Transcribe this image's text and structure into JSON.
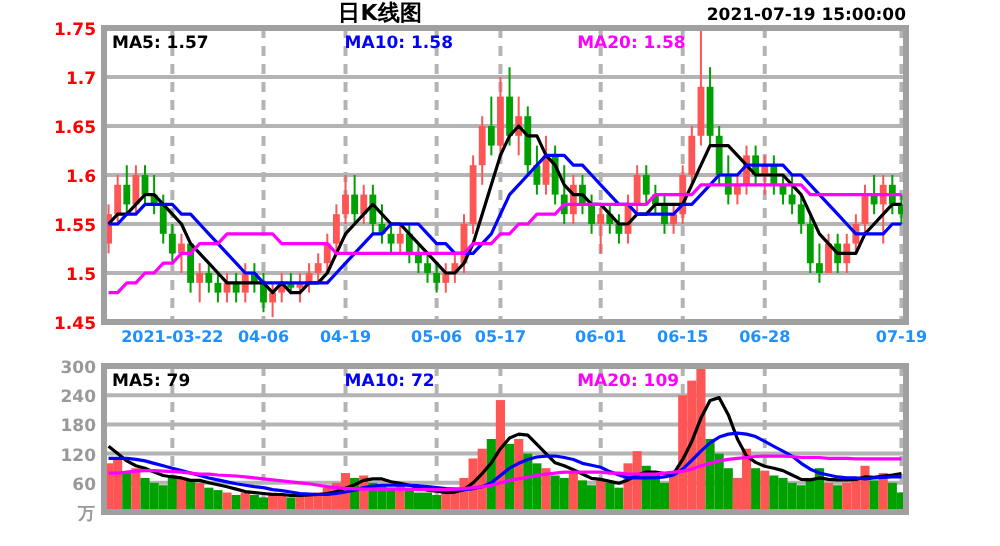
{
  "chart_data": [
    {
      "type": "candlestick",
      "title": "日K线图",
      "subtitle": "2021-07-19 15:00:00",
      "grid": true,
      "legend": "top left",
      "categories": [
        null,
        null,
        null,
        null,
        null,
        null,
        null,
        "2021-03-22",
        null,
        null,
        null,
        null,
        null,
        null,
        null,
        null,
        null,
        "04-06",
        null,
        null,
        null,
        null,
        null,
        null,
        null,
        null,
        "04-19",
        null,
        null,
        null,
        null,
        null,
        null,
        null,
        null,
        null,
        "05-06",
        null,
        null,
        null,
        null,
        null,
        null,
        "05-17",
        null,
        null,
        null,
        null,
        null,
        null,
        null,
        null,
        null,
        null,
        "06-01",
        null,
        null,
        null,
        null,
        null,
        null,
        null,
        null,
        "06-15",
        null,
        null,
        null,
        null,
        null,
        null,
        null,
        null,
        "06-28",
        null,
        null,
        null,
        null,
        null,
        null,
        null,
        null,
        null,
        null,
        null,
        null,
        null,
        null,
        "07-19"
      ],
      "ylim": [
        1.45,
        1.75
      ],
      "yticks": [
        1.45,
        1.5,
        1.55,
        1.6,
        1.65,
        1.7,
        1.75
      ],
      "ohlc": [
        [
          1.53,
          1.57,
          1.52,
          1.56
        ],
        [
          1.56,
          1.6,
          1.55,
          1.59
        ],
        [
          1.59,
          1.61,
          1.56,
          1.57
        ],
        [
          1.57,
          1.61,
          1.56,
          1.6
        ],
        [
          1.6,
          1.61,
          1.57,
          1.58
        ],
        [
          1.58,
          1.6,
          1.56,
          1.57
        ],
        [
          1.57,
          1.58,
          1.53,
          1.54
        ],
        [
          1.54,
          1.55,
          1.51,
          1.52
        ],
        [
          1.52,
          1.54,
          1.5,
          1.53
        ],
        [
          1.53,
          1.53,
          1.48,
          1.49
        ],
        [
          1.49,
          1.51,
          1.47,
          1.5
        ],
        [
          1.5,
          1.51,
          1.48,
          1.49
        ],
        [
          1.49,
          1.5,
          1.47,
          1.48
        ],
        [
          1.48,
          1.5,
          1.47,
          1.49
        ],
        [
          1.49,
          1.5,
          1.47,
          1.48
        ],
        [
          1.48,
          1.51,
          1.47,
          1.5
        ],
        [
          1.5,
          1.51,
          1.48,
          1.49
        ],
        [
          1.49,
          1.5,
          1.46,
          1.47
        ],
        [
          1.47,
          1.49,
          1.455,
          1.48
        ],
        [
          1.48,
          1.5,
          1.47,
          1.49
        ],
        [
          1.49,
          1.5,
          1.48,
          1.485
        ],
        [
          1.485,
          1.5,
          1.47,
          1.49
        ],
        [
          1.49,
          1.51,
          1.48,
          1.5
        ],
        [
          1.5,
          1.52,
          1.49,
          1.51
        ],
        [
          1.51,
          1.54,
          1.5,
          1.53
        ],
        [
          1.53,
          1.57,
          1.52,
          1.56
        ],
        [
          1.56,
          1.6,
          1.55,
          1.58
        ],
        [
          1.58,
          1.6,
          1.55,
          1.56
        ],
        [
          1.56,
          1.59,
          1.55,
          1.58
        ],
        [
          1.58,
          1.59,
          1.54,
          1.55
        ],
        [
          1.55,
          1.57,
          1.53,
          1.54
        ],
        [
          1.54,
          1.55,
          1.52,
          1.53
        ],
        [
          1.53,
          1.55,
          1.52,
          1.54
        ],
        [
          1.54,
          1.55,
          1.51,
          1.52
        ],
        [
          1.52,
          1.53,
          1.5,
          1.51
        ],
        [
          1.51,
          1.52,
          1.49,
          1.5
        ],
        [
          1.5,
          1.51,
          1.48,
          1.49
        ],
        [
          1.49,
          1.51,
          1.48,
          1.5
        ],
        [
          1.5,
          1.52,
          1.49,
          1.51
        ],
        [
          1.51,
          1.56,
          1.5,
          1.55
        ],
        [
          1.55,
          1.62,
          1.54,
          1.61
        ],
        [
          1.61,
          1.66,
          1.59,
          1.65
        ],
        [
          1.65,
          1.68,
          1.62,
          1.63
        ],
        [
          1.63,
          1.7,
          1.62,
          1.68
        ],
        [
          1.68,
          1.71,
          1.63,
          1.64
        ],
        [
          1.64,
          1.68,
          1.62,
          1.66
        ],
        [
          1.66,
          1.67,
          1.6,
          1.61
        ],
        [
          1.61,
          1.63,
          1.58,
          1.59
        ],
        [
          1.59,
          1.64,
          1.58,
          1.62
        ],
        [
          1.62,
          1.63,
          1.57,
          1.58
        ],
        [
          1.58,
          1.61,
          1.55,
          1.56
        ],
        [
          1.56,
          1.6,
          1.55,
          1.59
        ],
        [
          1.59,
          1.6,
          1.56,
          1.57
        ],
        [
          1.57,
          1.58,
          1.54,
          1.55
        ],
        [
          1.55,
          1.57,
          1.52,
          1.56
        ],
        [
          1.56,
          1.57,
          1.54,
          1.55
        ],
        [
          1.55,
          1.56,
          1.53,
          1.54
        ],
        [
          1.54,
          1.58,
          1.53,
          1.57
        ],
        [
          1.57,
          1.61,
          1.56,
          1.6
        ],
        [
          1.6,
          1.61,
          1.57,
          1.58
        ],
        [
          1.58,
          1.59,
          1.56,
          1.57
        ],
        [
          1.57,
          1.58,
          1.54,
          1.55
        ],
        [
          1.55,
          1.57,
          1.54,
          1.56
        ],
        [
          1.56,
          1.61,
          1.55,
          1.6
        ],
        [
          1.6,
          1.65,
          1.59,
          1.64
        ],
        [
          1.64,
          1.75,
          1.63,
          1.69
        ],
        [
          1.69,
          1.71,
          1.63,
          1.64
        ],
        [
          1.64,
          1.65,
          1.59,
          1.6
        ],
        [
          1.6,
          1.62,
          1.57,
          1.58
        ],
        [
          1.58,
          1.6,
          1.57,
          1.59
        ],
        [
          1.59,
          1.63,
          1.58,
          1.62
        ],
        [
          1.62,
          1.63,
          1.59,
          1.6
        ],
        [
          1.6,
          1.62,
          1.58,
          1.61
        ],
        [
          1.61,
          1.62,
          1.58,
          1.59
        ],
        [
          1.59,
          1.6,
          1.57,
          1.58
        ],
        [
          1.58,
          1.6,
          1.56,
          1.57
        ],
        [
          1.57,
          1.58,
          1.54,
          1.55
        ],
        [
          1.55,
          1.56,
          1.5,
          1.51
        ],
        [
          1.51,
          1.53,
          1.49,
          1.5
        ],
        [
          1.5,
          1.54,
          1.5,
          1.53
        ],
        [
          1.53,
          1.54,
          1.5,
          1.51
        ],
        [
          1.51,
          1.54,
          1.5,
          1.53
        ],
        [
          1.53,
          1.56,
          1.52,
          1.55
        ],
        [
          1.55,
          1.59,
          1.54,
          1.58
        ],
        [
          1.58,
          1.6,
          1.56,
          1.57
        ],
        [
          1.57,
          1.6,
          1.53,
          1.59
        ],
        [
          1.59,
          1.6,
          1.56,
          1.57
        ],
        [
          1.57,
          1.58,
          1.55,
          1.56
        ]
      ],
      "colors": [
        "#ff5555",
        "#ff5555",
        "#00a000",
        "#ff5555",
        "#00a000",
        "#00a000",
        "#00a000",
        "#00a000",
        "#ff5555",
        "#00a000",
        "#ff5555",
        "#00a000",
        "#00a000",
        "#ff5555",
        "#00a000",
        "#ff5555",
        "#00a000",
        "#00a000",
        "#ff5555",
        "#ff5555",
        "#00a000",
        "#ff5555",
        "#ff5555",
        "#ff5555",
        "#ff5555",
        "#ff5555",
        "#ff5555",
        "#00a000",
        "#ff5555",
        "#00a000",
        "#00a000",
        "#00a000",
        "#ff5555",
        "#00a000",
        "#00a000",
        "#00a000",
        "#00a000",
        "#ff5555",
        "#ff5555",
        "#ff5555",
        "#ff5555",
        "#ff5555",
        "#00a000",
        "#ff5555",
        "#00a000",
        "#ff5555",
        "#00a000",
        "#00a000",
        "#ff5555",
        "#00a000",
        "#00a000",
        "#ff5555",
        "#00a000",
        "#00a000",
        "#ff5555",
        "#00a000",
        "#00a000",
        "#ff5555",
        "#ff5555",
        "#00a000",
        "#00a000",
        "#00a000",
        "#ff5555",
        "#ff5555",
        "#ff5555",
        "#ff5555",
        "#00a000",
        "#00a000",
        "#00a000",
        "#ff5555",
        "#ff5555",
        "#00a000",
        "#ff5555",
        "#00a000",
        "#00a000",
        "#00a000",
        "#00a000",
        "#00a000",
        "#00a000",
        "#ff5555",
        "#00a000",
        "#ff5555",
        "#ff5555",
        "#ff5555",
        "#00a000",
        "#ff5555",
        "#00a000",
        "#00a000"
      ],
      "series": [
        {
          "name": "MA5: 1.57",
          "type": "line",
          "color": "#000000",
          "values": [
            1.55,
            1.56,
            1.56,
            1.57,
            1.58,
            1.58,
            1.57,
            1.56,
            1.55,
            1.53,
            1.52,
            1.51,
            1.5,
            1.49,
            1.49,
            1.49,
            1.49,
            1.49,
            1.48,
            1.49,
            1.48,
            1.48,
            1.49,
            1.49,
            1.5,
            1.52,
            1.54,
            1.55,
            1.56,
            1.57,
            1.56,
            1.55,
            1.55,
            1.54,
            1.53,
            1.52,
            1.51,
            1.5,
            1.5,
            1.51,
            1.53,
            1.56,
            1.59,
            1.62,
            1.64,
            1.65,
            1.64,
            1.64,
            1.62,
            1.61,
            1.59,
            1.58,
            1.58,
            1.57,
            1.57,
            1.56,
            1.55,
            1.55,
            1.56,
            1.56,
            1.57,
            1.57,
            1.57,
            1.57,
            1.59,
            1.61,
            1.63,
            1.63,
            1.63,
            1.62,
            1.61,
            1.6,
            1.6,
            1.6,
            1.6,
            1.59,
            1.58,
            1.56,
            1.54,
            1.53,
            1.52,
            1.52,
            1.52,
            1.54,
            1.55,
            1.56,
            1.57,
            1.57
          ]
        },
        {
          "name": "MA10: 1.58",
          "type": "line",
          "color": "#0000ff",
          "values": [
            1.55,
            1.55,
            1.56,
            1.56,
            1.57,
            1.57,
            1.57,
            1.57,
            1.56,
            1.56,
            1.55,
            1.54,
            1.53,
            1.52,
            1.51,
            1.5,
            1.5,
            1.49,
            1.49,
            1.49,
            1.49,
            1.49,
            1.49,
            1.49,
            1.49,
            1.5,
            1.51,
            1.52,
            1.53,
            1.54,
            1.54,
            1.55,
            1.55,
            1.55,
            1.55,
            1.54,
            1.53,
            1.53,
            1.52,
            1.52,
            1.52,
            1.53,
            1.54,
            1.56,
            1.58,
            1.59,
            1.6,
            1.61,
            1.62,
            1.62,
            1.62,
            1.61,
            1.61,
            1.6,
            1.59,
            1.58,
            1.57,
            1.57,
            1.56,
            1.56,
            1.56,
            1.56,
            1.56,
            1.57,
            1.57,
            1.58,
            1.59,
            1.6,
            1.6,
            1.6,
            1.61,
            1.61,
            1.61,
            1.61,
            1.61,
            1.6,
            1.6,
            1.59,
            1.58,
            1.57,
            1.56,
            1.55,
            1.54,
            1.54,
            1.54,
            1.54,
            1.55,
            1.55
          ]
        },
        {
          "name": "MA20: 1.58",
          "type": "line",
          "color": "#ff00ff",
          "values": [
            1.48,
            1.48,
            1.49,
            1.49,
            1.5,
            1.5,
            1.51,
            1.51,
            1.52,
            1.52,
            1.53,
            1.53,
            1.53,
            1.54,
            1.54,
            1.54,
            1.54,
            1.54,
            1.54,
            1.53,
            1.53,
            1.53,
            1.53,
            1.53,
            1.53,
            1.52,
            1.52,
            1.52,
            1.52,
            1.52,
            1.52,
            1.52,
            1.52,
            1.52,
            1.52,
            1.52,
            1.52,
            1.52,
            1.52,
            1.52,
            1.53,
            1.53,
            1.53,
            1.54,
            1.54,
            1.55,
            1.55,
            1.56,
            1.56,
            1.56,
            1.57,
            1.57,
            1.57,
            1.57,
            1.57,
            1.57,
            1.57,
            1.57,
            1.57,
            1.57,
            1.58,
            1.58,
            1.58,
            1.58,
            1.58,
            1.59,
            1.59,
            1.59,
            1.59,
            1.59,
            1.59,
            1.59,
            1.59,
            1.59,
            1.59,
            1.59,
            1.59,
            1.58,
            1.58,
            1.58,
            1.58,
            1.58,
            1.58,
            1.58,
            1.58,
            1.58,
            1.58,
            1.58
          ]
        }
      ]
    },
    {
      "type": "bar",
      "grid": true,
      "legend": "top left",
      "tick_labels": "y",
      "categories": [
        null,
        null,
        null,
        null,
        null,
        null,
        null,
        null,
        null,
        null,
        null,
        null,
        null,
        null,
        null,
        null,
        null,
        null,
        null,
        null,
        null,
        null,
        null,
        null,
        null,
        null,
        null,
        null,
        null,
        null,
        null,
        null,
        null,
        null,
        null,
        null,
        null,
        null,
        null,
        null,
        null,
        null,
        null,
        null,
        null,
        null,
        null,
        null,
        null,
        null,
        null,
        null,
        null,
        null,
        null,
        null,
        null,
        null,
        null,
        null,
        null,
        null,
        null,
        null,
        null,
        null,
        null,
        null,
        null,
        null,
        null,
        null,
        null,
        null,
        null,
        null,
        null,
        null,
        null,
        null,
        null,
        null,
        null,
        null,
        null,
        null,
        null,
        null
      ],
      "ylim": [
        0,
        300
      ],
      "yticks": [
        {
          "value": 0,
          "label": "万"
        },
        60,
        120,
        180,
        240,
        300
      ],
      "values": [
        100,
        110,
        80,
        90,
        70,
        60,
        55,
        75,
        70,
        65,
        60,
        50,
        45,
        40,
        35,
        40,
        35,
        30,
        40,
        35,
        30,
        35,
        35,
        40,
        50,
        60,
        80,
        70,
        75,
        60,
        55,
        50,
        55,
        45,
        40,
        40,
        35,
        40,
        45,
        70,
        110,
        130,
        150,
        230,
        140,
        150,
        120,
        100,
        90,
        75,
        70,
        80,
        65,
        55,
        65,
        60,
        50,
        100,
        125,
        95,
        80,
        60,
        80,
        240,
        270,
        295,
        150,
        120,
        90,
        70,
        130,
        90,
        85,
        75,
        70,
        60,
        55,
        70,
        90,
        60,
        55,
        60,
        70,
        95,
        65,
        80,
        60,
        40
      ],
      "colors": [
        "#ff5555",
        "#ff5555",
        "#00a000",
        "#ff5555",
        "#00a000",
        "#00a000",
        "#00a000",
        "#00a000",
        "#ff5555",
        "#00a000",
        "#ff5555",
        "#00a000",
        "#00a000",
        "#ff5555",
        "#00a000",
        "#ff5555",
        "#00a000",
        "#00a000",
        "#ff5555",
        "#ff5555",
        "#00a000",
        "#ff5555",
        "#ff5555",
        "#ff5555",
        "#ff5555",
        "#ff5555",
        "#ff5555",
        "#00a000",
        "#ff5555",
        "#00a000",
        "#00a000",
        "#00a000",
        "#ff5555",
        "#00a000",
        "#00a000",
        "#00a000",
        "#00a000",
        "#ff5555",
        "#ff5555",
        "#ff5555",
        "#ff5555",
        "#ff5555",
        "#00a000",
        "#ff5555",
        "#00a000",
        "#ff5555",
        "#00a000",
        "#00a000",
        "#ff5555",
        "#00a000",
        "#00a000",
        "#ff5555",
        "#00a000",
        "#00a000",
        "#ff5555",
        "#00a000",
        "#00a000",
        "#ff5555",
        "#ff5555",
        "#00a000",
        "#00a000",
        "#00a000",
        "#ff5555",
        "#ff5555",
        "#ff5555",
        "#ff5555",
        "#00a000",
        "#00a000",
        "#00a000",
        "#ff5555",
        "#ff5555",
        "#00a000",
        "#ff5555",
        "#00a000",
        "#00a000",
        "#00a000",
        "#00a000",
        "#00a000",
        "#00a000",
        "#ff5555",
        "#00a000",
        "#ff5555",
        "#ff5555",
        "#ff5555",
        "#00a000",
        "#ff5555",
        "#00a000",
        "#00a000"
      ],
      "series": [
        {
          "name": "MA5: 79",
          "type": "line",
          "color": "#000000",
          "values": [
            135,
            120,
            105,
            95,
            90,
            82,
            75,
            72,
            70,
            65,
            65,
            60,
            56,
            52,
            47,
            42,
            40,
            38,
            36,
            36,
            34,
            34,
            35,
            36,
            38,
            42,
            49,
            56,
            65,
            68,
            68,
            62,
            59,
            55,
            50,
            45,
            43,
            40,
            41,
            46,
            60,
            79,
            101,
            130,
            152,
            160,
            158,
            139,
            120,
            101,
            95,
            87,
            78,
            69,
            67,
            63,
            59,
            66,
            76,
            82,
            82,
            79,
            79,
            108,
            145,
            193,
            229,
            235,
            200,
            150,
            115,
            102,
            94,
            90,
            85,
            76,
            67,
            66,
            70,
            67,
            66,
            66,
            67,
            72,
            71,
            74,
            76,
            79
          ]
        },
        {
          "name": "MA10: 72",
          "type": "line",
          "color": "#0000ff",
          "values": [
            110,
            110,
            110,
            108,
            105,
            100,
            95,
            90,
            85,
            80,
            75,
            70,
            66,
            62,
            58,
            55,
            52,
            50,
            46,
            44,
            41,
            38,
            37,
            36,
            36,
            38,
            41,
            45,
            50,
            53,
            55,
            55,
            55,
            55,
            54,
            52,
            50,
            48,
            47,
            46,
            48,
            52,
            60,
            75,
            90,
            100,
            108,
            113,
            115,
            115,
            112,
            108,
            100,
            96,
            92,
            83,
            76,
            70,
            70,
            70,
            70,
            72,
            76,
            88,
            106,
            125,
            142,
            154,
            160,
            162,
            160,
            155,
            145,
            135,
            125,
            115,
            100,
            88,
            80,
            76,
            72,
            70,
            70,
            68,
            70,
            71,
            72,
            72
          ]
        },
        {
          "name": "MA20: 109",
          "type": "line",
          "color": "#ff00ff",
          "values": [
            80,
            80,
            82,
            84,
            85,
            85,
            84,
            83,
            82,
            80,
            78,
            78,
            76,
            75,
            74,
            72,
            70,
            68,
            66,
            64,
            62,
            60,
            58,
            55,
            52,
            50,
            48,
            48,
            47,
            47,
            47,
            47,
            47,
            47,
            46,
            46,
            46,
            46,
            47,
            48,
            50,
            52,
            55,
            60,
            65,
            68,
            72,
            75,
            78,
            80,
            82,
            82,
            82,
            82,
            82,
            80,
            80,
            78,
            78,
            78,
            78,
            80,
            82,
            84,
            88,
            95,
            100,
            105,
            108,
            110,
            112,
            114,
            115,
            115,
            115,
            114,
            112,
            112,
            112,
            110,
            110,
            110,
            109,
            109,
            109,
            109,
            109,
            109
          ]
        }
      ]
    }
  ]
}
